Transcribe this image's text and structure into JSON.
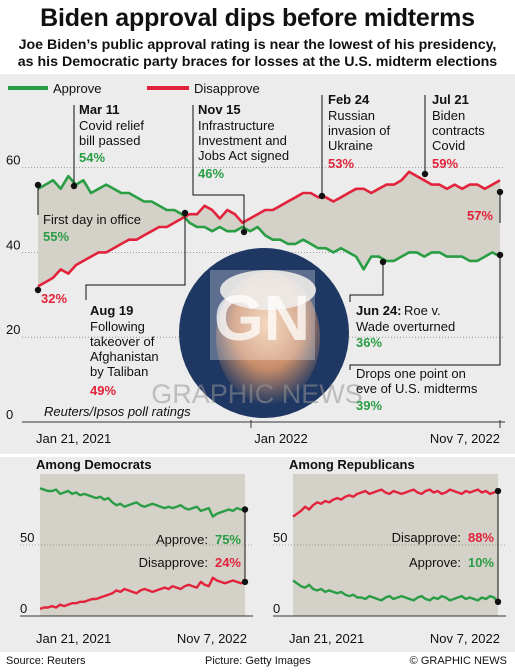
{
  "title": "Biden approval dips before midterms",
  "subtitle_1": "Joe Biden’s public approval rating is near the lowest of his presidency,",
  "subtitle_2": "as his Democratic party braces for losses at the U.S. midterm elections",
  "source": "Source: Reuters",
  "picture_credit": "Picture: Getty Images",
  "copyright": "© GRAPHIC NEWS",
  "watermark": "GRAPHIC NEWS",
  "logo_text": "GN",
  "colors": {
    "approve": "#2a9d45",
    "disapprove": "#e2233b",
    "band": "#d3d1c8",
    "panel": "#ececec"
  },
  "chart_data": [
    {
      "type": "line",
      "title": "",
      "legend": [
        "Approve",
        "Disapprove"
      ],
      "ylim": [
        0,
        65
      ],
      "yticks": [
        "0",
        "20",
        "40",
        "60"
      ],
      "xticks": [
        "Jan 21, 2021",
        "Jan 2022",
        "Nov 7, 2022"
      ],
      "note": "Reuters/Ipsos poll ratings",
      "series": [
        {
          "name": "Approve",
          "values": [
            55,
            56,
            57,
            55,
            58,
            56,
            57,
            54,
            55,
            56,
            55,
            54,
            54,
            53,
            52,
            52,
            51,
            50,
            50,
            49,
            47,
            46,
            46,
            45,
            46,
            45,
            45,
            46,
            45,
            46,
            44,
            43,
            43,
            42,
            42,
            43,
            42,
            41,
            41,
            40,
            41,
            40,
            39,
            36,
            39,
            39,
            38,
            38,
            39,
            40,
            40,
            39,
            40,
            40,
            39,
            39,
            39,
            38,
            38,
            39,
            40,
            39
          ]
        },
        {
          "name": "Disapprove",
          "values": [
            32,
            33,
            34,
            36,
            35,
            37,
            38,
            39,
            40,
            40,
            41,
            42,
            43,
            43,
            44,
            45,
            46,
            46,
            47,
            48,
            49,
            49,
            51,
            50,
            48,
            50,
            49,
            47,
            48,
            49,
            50,
            50,
            51,
            52,
            53,
            54,
            54,
            53,
            53,
            52,
            53,
            54,
            55,
            55,
            54,
            55,
            56,
            56,
            57,
            59,
            58,
            57,
            56,
            56,
            55,
            56,
            55,
            56,
            56,
            55,
            56,
            57
          ]
        }
      ],
      "annotations": [
        {
          "date": "Jan 21, 2021",
          "label": "First day in office",
          "values": [
            "55%",
            "32%"
          ]
        },
        {
          "date": "Mar 11",
          "label": "Covid relief bill passed",
          "values": [
            "54%"
          ]
        },
        {
          "date": "Aug 19",
          "label": "Following takeover of Afghanistan by Taliban",
          "values": [
            "49%"
          ]
        },
        {
          "date": "Nov 15",
          "label": "Infrastructure Investment and Jobs Act signed",
          "values": [
            "46%"
          ]
        },
        {
          "date": "Feb 24",
          "label": "Russian invasion of Ukraine",
          "values": [
            "53%"
          ]
        },
        {
          "date": "Jul 21",
          "label": "Biden contracts Covid",
          "values": [
            "59%"
          ]
        },
        {
          "date": "Jun 24",
          "label": "Roe v. Wade overturned",
          "values": [
            "36%"
          ]
        },
        {
          "label": "Drops one point on eve of U.S. midterms",
          "values": [
            "39%",
            "57%"
          ]
        }
      ]
    },
    {
      "type": "line",
      "title": "Among Democrats",
      "ylim": [
        0,
        100
      ],
      "yticks": [
        "0",
        "50"
      ],
      "xticks": [
        "Jan 21, 2021",
        "Nov 7, 2022"
      ],
      "series": [
        {
          "name": "Approve",
          "label": "Approve: 75%",
          "values": [
            90,
            89,
            88,
            88,
            89,
            86,
            87,
            88,
            86,
            87,
            85,
            86,
            85,
            84,
            83,
            84,
            82,
            83,
            80,
            78,
            79,
            77,
            78,
            79,
            80,
            78,
            77,
            78,
            79,
            78,
            77,
            76,
            77,
            76,
            77,
            78,
            76,
            75,
            76,
            77,
            74,
            75,
            76,
            70,
            72,
            73,
            74,
            75,
            74,
            76,
            75,
            75
          ]
        },
        {
          "name": "Disapprove",
          "label": "Disapprove: 24%",
          "values": [
            5,
            6,
            6,
            7,
            6,
            8,
            7,
            8,
            9,
            9,
            10,
            10,
            11,
            12,
            12,
            13,
            14,
            15,
            16,
            18,
            17,
            19,
            18,
            17,
            16,
            18,
            19,
            18,
            17,
            18,
            19,
            20,
            19,
            21,
            20,
            19,
            21,
            22,
            21,
            20,
            24,
            22,
            21,
            27,
            25,
            24,
            23,
            24,
            25,
            24,
            23,
            24
          ]
        }
      ]
    },
    {
      "type": "line",
      "title": "Among Republicans",
      "ylim": [
        0,
        100
      ],
      "yticks": [
        "0",
        "50"
      ],
      "xticks": [
        "Jan 21, 2021",
        "Nov 7, 2022"
      ],
      "series": [
        {
          "name": "Disapprove",
          "label": "Disapprove: 88%",
          "values": [
            70,
            72,
            74,
            77,
            75,
            78,
            80,
            79,
            81,
            80,
            82,
            83,
            82,
            84,
            85,
            84,
            86,
            87,
            88,
            86,
            87,
            88,
            89,
            87,
            86,
            88,
            87,
            86,
            87,
            88,
            89,
            87,
            86,
            88,
            89,
            87,
            88,
            86,
            87,
            89,
            88,
            87,
            86,
            88,
            87,
            88,
            89,
            87,
            88,
            86,
            87,
            88
          ]
        },
        {
          "name": "Approve",
          "label": "Approve: 10%",
          "values": [
            25,
            23,
            21,
            20,
            22,
            19,
            18,
            19,
            17,
            18,
            17,
            16,
            17,
            15,
            14,
            15,
            13,
            13,
            12,
            14,
            13,
            12,
            11,
            13,
            14,
            12,
            13,
            14,
            13,
            12,
            11,
            13,
            14,
            12,
            11,
            13,
            12,
            14,
            13,
            11,
            12,
            13,
            14,
            12,
            13,
            12,
            11,
            13,
            12,
            14,
            13,
            10
          ]
        }
      ]
    }
  ]
}
